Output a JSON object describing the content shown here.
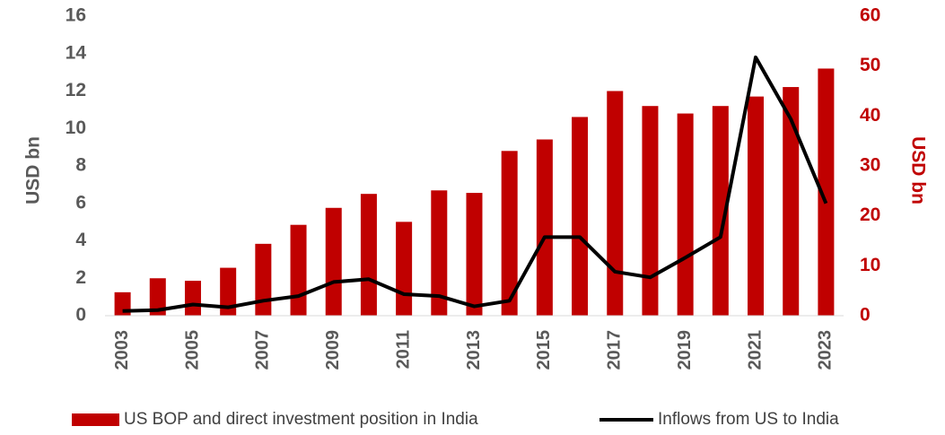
{
  "chart_data": {
    "type": "bar_line",
    "categories": [
      "2003",
      null,
      "2005",
      null,
      "2007",
      null,
      "2009",
      null,
      "2011",
      null,
      "2013",
      null,
      "2015",
      null,
      "2017",
      null,
      "2019",
      null,
      "2021",
      null,
      "2023"
    ],
    "ylabel": "USD bn",
    "y2label": "USD bn",
    "ylim": [
      0,
      16
    ],
    "yticks": [
      0,
      2,
      4,
      6,
      8,
      10,
      12,
      14,
      16
    ],
    "y2lim": [
      0,
      60
    ],
    "y2ticks": [
      0,
      10,
      20,
      30,
      40,
      50,
      60
    ],
    "series": [
      {
        "name": "US BOP and direct investment position in India",
        "type": "bar",
        "axis": "y2",
        "color": "#c00000",
        "values": [
          4.7,
          7.5,
          7,
          9.6,
          14.4,
          18.2,
          21.6,
          24.4,
          18.8,
          25.1,
          24.6,
          33,
          35.3,
          39.8,
          45,
          42,
          40.5,
          42,
          43.9,
          45.8,
          49.5
        ]
      },
      {
        "name": "Inflows from US to India",
        "type": "line",
        "axis": "y",
        "color": "#000000",
        "values": [
          0.25,
          0.3,
          0.6,
          0.45,
          0.8,
          1.05,
          1.8,
          1.95,
          1.15,
          1.05,
          0.5,
          0.8,
          4.2,
          4.2,
          2.35,
          2.05,
          3.1,
          4.2,
          13.8,
          10.5,
          6.0
        ]
      }
    ],
    "legend": "bottom"
  }
}
